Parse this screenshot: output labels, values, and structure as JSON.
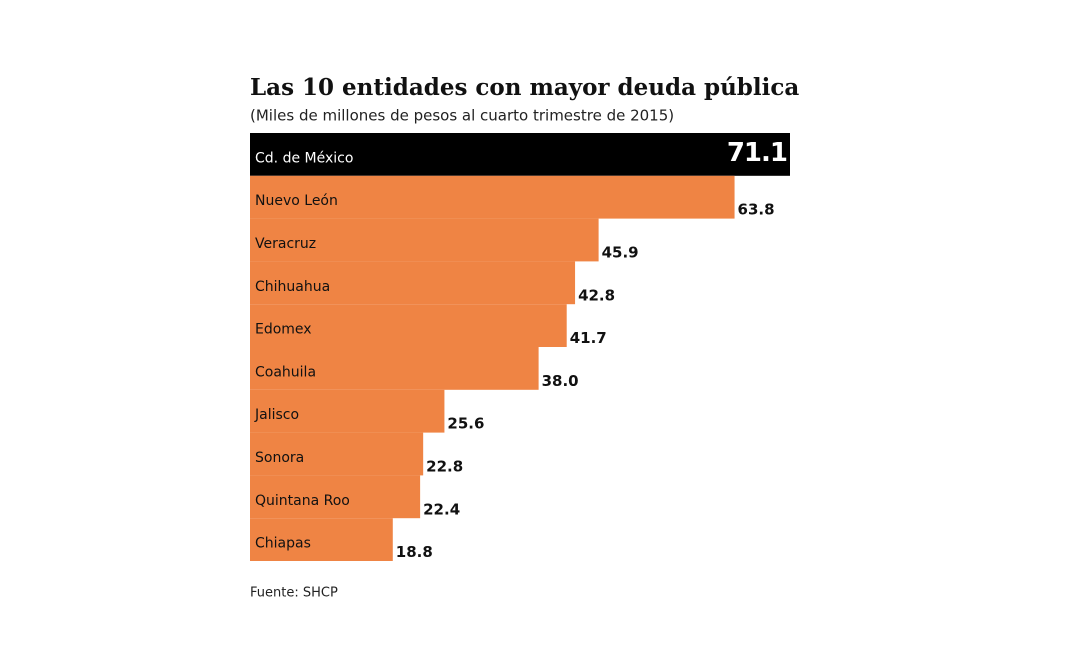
{
  "chart_data": {
    "type": "hbar",
    "title": "Las 10 entidades con mayor deuda pública",
    "subtitle": "(Miles de millones de pesos al cuarto trimestre de 2015)",
    "source": "Fuente: SHCP",
    "categories": [
      "Cd. de México",
      "Nuevo León",
      "Veracruz",
      "Chihuahua",
      "Edomex",
      "Coahuila",
      "Jalisco",
      "Sonora",
      "Quintana Roo",
      "Chiapas"
    ],
    "values": [
      71.1,
      63.8,
      45.9,
      42.8,
      41.7,
      38.0,
      25.6,
      22.8,
      22.4,
      18.8
    ],
    "value_labels": [
      "71.1",
      "63.8",
      "45.9",
      "42.8",
      "41.7",
      "38.0",
      "25.6",
      "22.8",
      "22.4",
      "18.8"
    ],
    "colors": [
      "#000000",
      "#ef8444",
      "#ef8444",
      "#ef8444",
      "#ef8444",
      "#ef8444",
      "#ef8444",
      "#ef8444",
      "#ef8444",
      "#ef8444"
    ]
  }
}
